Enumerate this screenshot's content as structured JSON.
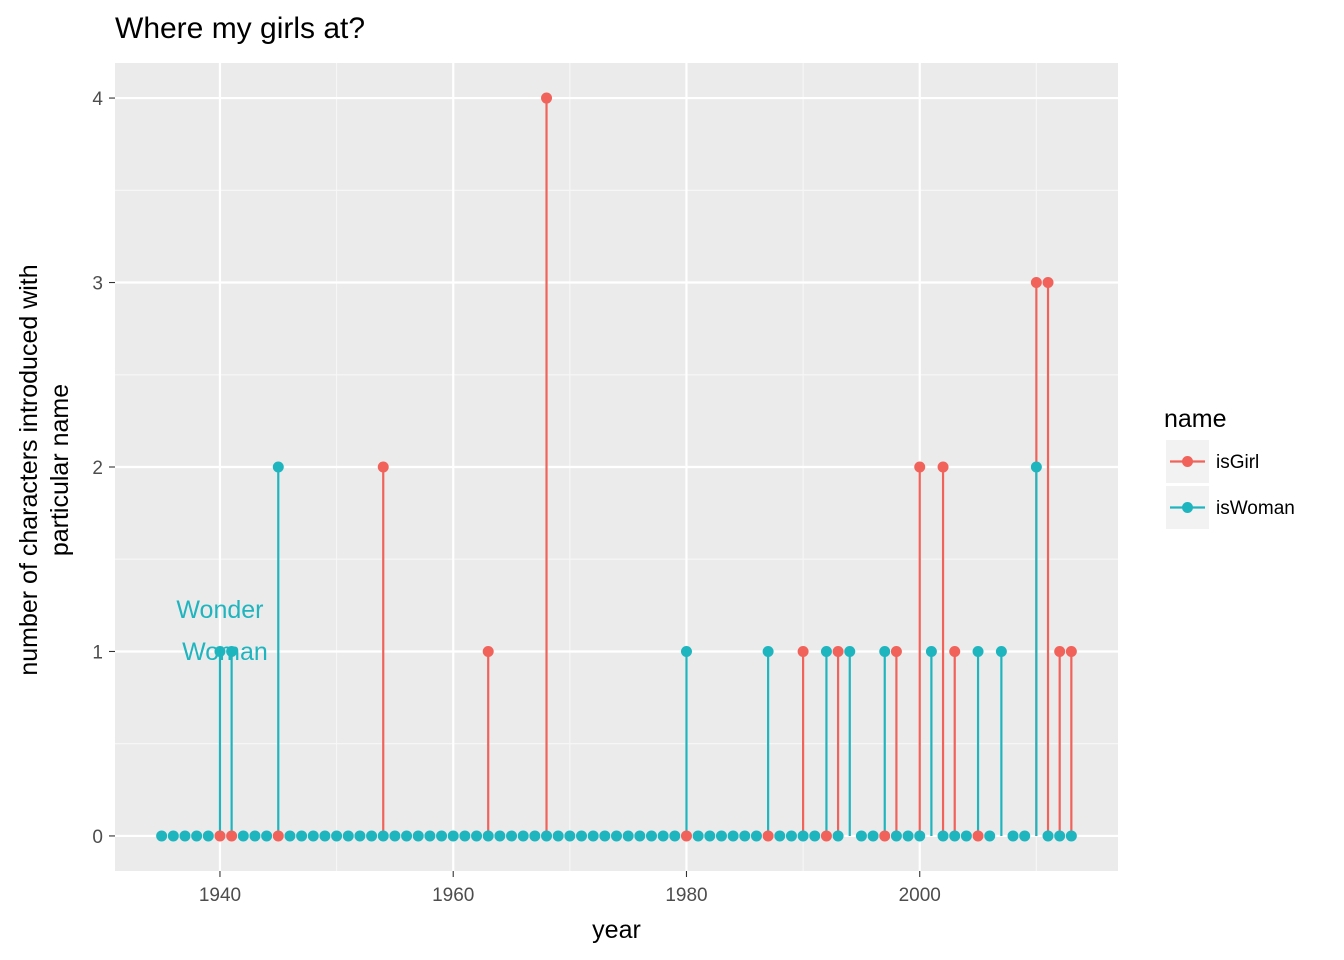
{
  "chart_data": {
    "type": "line",
    "title": "Where my girls at?",
    "xlabel": "year",
    "ylabel_lines": [
      "number of characters introduced with",
      "particular name"
    ],
    "xlim": [
      1931,
      2017
    ],
    "ylim": [
      -0.19,
      4.19
    ],
    "xticks": [
      1940,
      1960,
      1980,
      2000
    ],
    "yticks": [
      0,
      1,
      2,
      3,
      4
    ],
    "grid": true,
    "legend": {
      "title": "name",
      "placement": "right"
    },
    "annotation": {
      "lines": [
        "Wonder",
        "Woman"
      ],
      "x": 1940,
      "y": 1.15,
      "color": "#1fb5bf"
    },
    "series": [
      {
        "name": "isGirl",
        "color": "#f0625a",
        "points": [
          [
            1940,
            0
          ],
          [
            1941,
            0
          ],
          [
            1945,
            0
          ],
          [
            1954,
            2
          ],
          [
            1963,
            1
          ],
          [
            1968,
            4
          ],
          [
            1980,
            0
          ],
          [
            1987,
            0
          ],
          [
            1990,
            1
          ],
          [
            1992,
            0
          ],
          [
            1993,
            1
          ],
          [
            1997,
            0
          ],
          [
            1998,
            1
          ],
          [
            2000,
            2
          ],
          [
            2002,
            2
          ],
          [
            2003,
            1
          ],
          [
            2005,
            0
          ],
          [
            2010,
            3
          ],
          [
            2011,
            3
          ],
          [
            2012,
            1
          ],
          [
            2013,
            1
          ]
        ]
      },
      {
        "name": "isWoman",
        "color": "#1fb5bf",
        "points": [
          [
            1935,
            0
          ],
          [
            1936,
            0
          ],
          [
            1937,
            0
          ],
          [
            1938,
            0
          ],
          [
            1939,
            0
          ],
          [
            1940,
            1
          ],
          [
            1941,
            1
          ],
          [
            1942,
            0
          ],
          [
            1943,
            0
          ],
          [
            1944,
            0
          ],
          [
            1945,
            2
          ],
          [
            1946,
            0
          ],
          [
            1947,
            0
          ],
          [
            1948,
            0
          ],
          [
            1949,
            0
          ],
          [
            1950,
            0
          ],
          [
            1951,
            0
          ],
          [
            1952,
            0
          ],
          [
            1953,
            0
          ],
          [
            1954,
            0
          ],
          [
            1955,
            0
          ],
          [
            1956,
            0
          ],
          [
            1957,
            0
          ],
          [
            1958,
            0
          ],
          [
            1959,
            0
          ],
          [
            1960,
            0
          ],
          [
            1961,
            0
          ],
          [
            1962,
            0
          ],
          [
            1963,
            0
          ],
          [
            1964,
            0
          ],
          [
            1965,
            0
          ],
          [
            1966,
            0
          ],
          [
            1967,
            0
          ],
          [
            1968,
            0
          ],
          [
            1969,
            0
          ],
          [
            1970,
            0
          ],
          [
            1971,
            0
          ],
          [
            1972,
            0
          ],
          [
            1973,
            0
          ],
          [
            1974,
            0
          ],
          [
            1975,
            0
          ],
          [
            1976,
            0
          ],
          [
            1977,
            0
          ],
          [
            1978,
            0
          ],
          [
            1979,
            0
          ],
          [
            1980,
            1
          ],
          [
            1981,
            0
          ],
          [
            1982,
            0
          ],
          [
            1983,
            0
          ],
          [
            1984,
            0
          ],
          [
            1985,
            0
          ],
          [
            1986,
            0
          ],
          [
            1987,
            1
          ],
          [
            1988,
            0
          ],
          [
            1989,
            0
          ],
          [
            1990,
            0
          ],
          [
            1991,
            0
          ],
          [
            1992,
            1
          ],
          [
            1993,
            0
          ],
          [
            1994,
            1
          ],
          [
            1995,
            0
          ],
          [
            1996,
            0
          ],
          [
            1997,
            1
          ],
          [
            1998,
            0
          ],
          [
            1999,
            0
          ],
          [
            2000,
            0
          ],
          [
            2001,
            1
          ],
          [
            2002,
            0
          ],
          [
            2003,
            0
          ],
          [
            2004,
            0
          ],
          [
            2005,
            1
          ],
          [
            2006,
            0
          ],
          [
            2007,
            1
          ],
          [
            2008,
            0
          ],
          [
            2009,
            0
          ],
          [
            2010,
            2
          ],
          [
            2011,
            0
          ],
          [
            2012,
            0
          ],
          [
            2013,
            0
          ]
        ]
      }
    ]
  }
}
